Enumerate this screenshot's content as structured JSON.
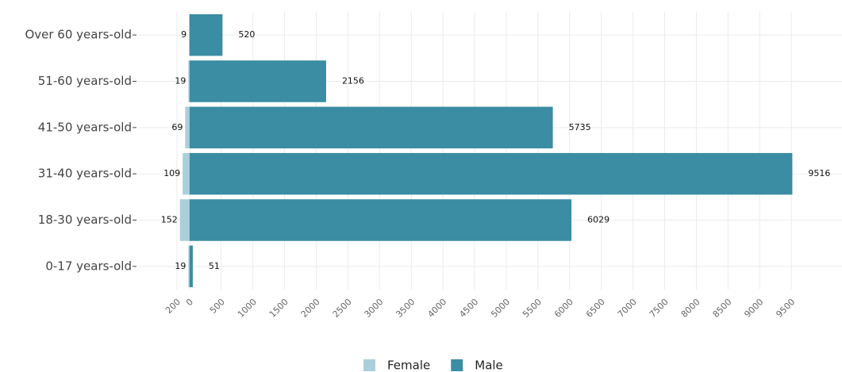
{
  "chart_data": {
    "type": "bar",
    "orientation": "horizontal",
    "categories": [
      "Over 60 years-old",
      "51-60 years-old",
      "41-50 years-old",
      "31-40 years-old",
      "18-30 years-old",
      "0-17 years-old"
    ],
    "series": [
      {
        "name": "Female",
        "color": "#aacfdb",
        "values": [
          -9,
          -19,
          -69,
          -109,
          -152,
          -19
        ],
        "value_labels": [
          "9",
          "19",
          "69",
          "109",
          "152",
          "19"
        ]
      },
      {
        "name": "Male",
        "color": "#3a8da3",
        "values": [
          520,
          2156,
          5735,
          9516,
          6029,
          51
        ]
      }
    ],
    "xlim": [
      -800,
      10300
    ],
    "xticks": [
      {
        "value": -200,
        "label": "200"
      },
      0,
      500,
      1000,
      1500,
      2000,
      2500,
      3000,
      3500,
      4000,
      4500,
      5000,
      5500,
      6000,
      6500,
      7000,
      7500,
      8000,
      8500,
      9000,
      9500
    ],
    "grid": true,
    "legend": "bottom"
  }
}
